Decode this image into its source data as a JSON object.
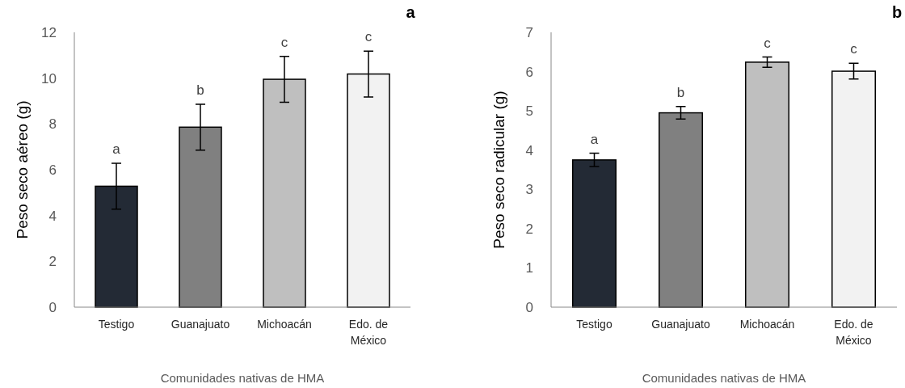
{
  "chart_data": [
    {
      "type": "bar",
      "xlabel": "Comunidades nativas de HMA",
      "ylabel": "Peso seco aéreo (g)",
      "categories": [
        "Testigo",
        "Guanajuato",
        "Michoacán",
        "Edo. de México"
      ],
      "values": [
        5.28,
        7.86,
        9.95,
        10.18
      ],
      "errors": [
        1.0,
        1.0,
        1.0,
        1.0
      ],
      "colors": [
        "#232a35",
        "#808080",
        "#bfbfbf",
        "#f2f2f2"
      ],
      "ylim": [
        0,
        12
      ],
      "yticks": [
        0,
        2,
        4,
        6,
        8,
        10,
        12
      ],
      "grid": false,
      "annotations": [
        "a",
        {
          "text": "a",
          "x": "Testigo",
          "y": 6.28
        },
        {
          "text": "b",
          "x": "Guanajuato",
          "y": 8.86
        },
        {
          "text": "c",
          "x": "Michoacán",
          "y": 10.95
        },
        {
          "text": "c",
          "x": "Edo. de México",
          "y": 11.18
        }
      ]
    },
    {
      "type": "bar",
      "xlabel": "Comunidades nativas de HMA",
      "ylabel": "Peso seco radicular (g)",
      "categories": [
        "Testigo",
        "Guanajuato",
        "Michoacán",
        "Edo. de México"
      ],
      "values": [
        3.75,
        4.95,
        6.24,
        6.01
      ],
      "errors": [
        0.17,
        0.16,
        0.13,
        0.2
      ],
      "colors": [
        "#232a35",
        "#808080",
        "#bfbfbf",
        "#f2f2f2"
      ],
      "ylim": [
        0,
        7
      ],
      "yticks": [
        0,
        1,
        2,
        3,
        4,
        5,
        6,
        7
      ],
      "grid": false,
      "annotations": [
        "b",
        {
          "text": "a",
          "x": "Testigo",
          "y": 3.92
        },
        {
          "text": "b",
          "x": "Guanajuato",
          "y": 5.11
        },
        {
          "text": "c",
          "x": "Michoacán",
          "y": 6.37
        },
        {
          "text": "c",
          "x": "Edo. de México",
          "y": 6.21
        }
      ]
    }
  ]
}
